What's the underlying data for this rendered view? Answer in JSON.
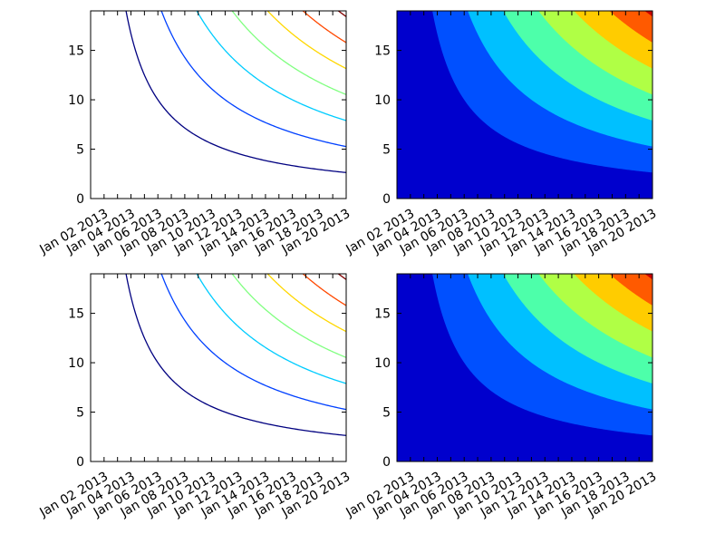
{
  "figure": {
    "background": "#ffffff",
    "colormap": "jet"
  },
  "chart_data": [
    {
      "type": "contour",
      "panel": "top-left",
      "z_function": "x * y",
      "x": {
        "scale": "date",
        "lim": [
          "2013-01-01",
          "2013-01-20"
        ],
        "ticks": [
          "2013-01-02",
          "2013-01-04",
          "2013-01-06",
          "2013-01-08",
          "2013-01-10",
          "2013-01-12",
          "2013-01-14",
          "2013-01-16",
          "2013-01-18",
          "2013-01-20"
        ],
        "tick_labels": [
          "Jan 02 2013",
          "Jan 04 2013",
          "Jan 06 2013",
          "Jan 08 2013",
          "Jan 10 2013",
          "Jan 12 2013",
          "Jan 14 2013",
          "Jan 16 2013",
          "Jan 18 2013",
          "Jan 20 2013"
        ],
        "tick_label_rotation": 30
      },
      "y": {
        "lim": [
          0,
          19
        ],
        "ticks": [
          0,
          5,
          10,
          15
        ],
        "tick_labels": [
          "0",
          "5",
          "10",
          "15"
        ]
      },
      "levels": [
        50,
        100,
        150,
        200,
        250,
        300,
        350
      ],
      "level_colors": [
        "#000080",
        "#0040ff",
        "#00ccff",
        "#80ff80",
        "#ffd700",
        "#ff4800",
        "#800000"
      ],
      "grid": false,
      "legend": "none"
    },
    {
      "type": "contourf",
      "panel": "top-right",
      "z_function": "x * y",
      "x": {
        "scale": "date",
        "lim": [
          "2013-01-01",
          "2013-01-20"
        ],
        "ticks": [
          "2013-01-02",
          "2013-01-04",
          "2013-01-06",
          "2013-01-08",
          "2013-01-10",
          "2013-01-12",
          "2013-01-14",
          "2013-01-16",
          "2013-01-18",
          "2013-01-20"
        ],
        "tick_labels": [
          "Jan 02 2013",
          "Jan 04 2013",
          "Jan 06 2013",
          "Jan 08 2013",
          "Jan 10 2013",
          "Jan 12 2013",
          "Jan 14 2013",
          "Jan 16 2013",
          "Jan 18 2013",
          "Jan 20 2013"
        ],
        "tick_label_rotation": 30
      },
      "y": {
        "lim": [
          0,
          19
        ],
        "ticks": [
          0,
          5,
          10,
          15
        ],
        "tick_labels": [
          "0",
          "5",
          "10",
          "15"
        ]
      },
      "levels": [
        0,
        50,
        100,
        150,
        200,
        250,
        300,
        350,
        400
      ],
      "band_colors": [
        "#0000cd",
        "#0050ff",
        "#00c0ff",
        "#4dffaa",
        "#b0ff45",
        "#ffcc00",
        "#ff5a00",
        "#cc0000"
      ],
      "grid": false,
      "legend": "none"
    },
    {
      "type": "contour",
      "panel": "bottom-left",
      "z_function": "x * y",
      "x": {
        "scale": "date",
        "lim": [
          "2013-01-01",
          "2013-01-20"
        ],
        "ticks": [
          "2013-01-02",
          "2013-01-04",
          "2013-01-06",
          "2013-01-08",
          "2013-01-10",
          "2013-01-12",
          "2013-01-14",
          "2013-01-16",
          "2013-01-18",
          "2013-01-20"
        ],
        "tick_labels": [
          "Jan 02 2013",
          "Jan 04 2013",
          "Jan 06 2013",
          "Jan 08 2013",
          "Jan 10 2013",
          "Jan 12 2013",
          "Jan 14 2013",
          "Jan 16 2013",
          "Jan 18 2013",
          "Jan 20 2013"
        ],
        "tick_label_rotation": 30
      },
      "y": {
        "lim": [
          0,
          19
        ],
        "ticks": [
          0,
          5,
          10,
          15
        ],
        "tick_labels": [
          "0",
          "5",
          "10",
          "15"
        ]
      },
      "levels": [
        50,
        100,
        150,
        200,
        250,
        300,
        350
      ],
      "level_colors": [
        "#000080",
        "#0040ff",
        "#00ccff",
        "#80ff80",
        "#ffd700",
        "#ff4800",
        "#800000"
      ],
      "grid": false,
      "legend": "none"
    },
    {
      "type": "contourf",
      "panel": "bottom-right",
      "z_function": "x * y",
      "x": {
        "scale": "date",
        "lim": [
          "2013-01-01",
          "2013-01-20"
        ],
        "ticks": [
          "2013-01-02",
          "2013-01-04",
          "2013-01-06",
          "2013-01-08",
          "2013-01-10",
          "2013-01-12",
          "2013-01-14",
          "2013-01-16",
          "2013-01-18",
          "2013-01-20"
        ],
        "tick_labels": [
          "Jan 02 2013",
          "Jan 04 2013",
          "Jan 06 2013",
          "Jan 08 2013",
          "Jan 10 2013",
          "Jan 12 2013",
          "Jan 14 2013",
          "Jan 16 2013",
          "Jan 18 2013",
          "Jan 20 2013"
        ],
        "tick_label_rotation": 30
      },
      "y": {
        "lim": [
          0,
          19
        ],
        "ticks": [
          0,
          5,
          10,
          15
        ],
        "tick_labels": [
          "0",
          "5",
          "10",
          "15"
        ]
      },
      "levels": [
        0,
        50,
        100,
        150,
        200,
        250,
        300,
        350,
        400
      ],
      "band_colors": [
        "#0000cd",
        "#0050ff",
        "#00c0ff",
        "#4dffaa",
        "#b0ff45",
        "#ffcc00",
        "#ff5a00",
        "#cc0000"
      ],
      "grid": false,
      "legend": "none"
    }
  ]
}
